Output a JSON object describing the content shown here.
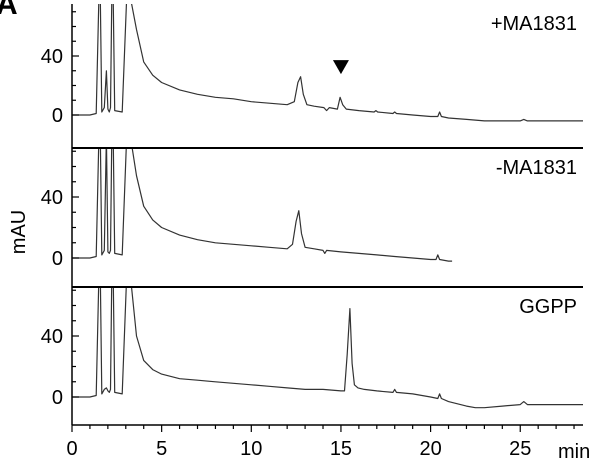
{
  "figure_letter": "A",
  "chart_data": {
    "type": "line",
    "layout": "stacked-panels",
    "xlabel": "min",
    "ylabel": "mAU",
    "xlim": [
      0,
      28.5
    ],
    "xticks": [
      0,
      5,
      10,
      15,
      20,
      25
    ],
    "yticks": [
      0,
      40
    ],
    "colors": {
      "trace": "#333333",
      "axis": "#000000",
      "marker": "#000000"
    },
    "panels": [
      {
        "label": "+MA1831",
        "ylim": [
          -8,
          80
        ],
        "series": {
          "x": [
            0,
            1.0,
            1.35,
            1.5,
            1.58,
            1.66,
            1.8,
            1.92,
            2.0,
            2.08,
            2.15,
            2.22,
            2.3,
            2.38,
            2.8,
            3.05,
            3.25,
            3.6,
            4.0,
            4.5,
            5,
            6,
            7,
            8,
            9,
            10,
            11,
            12,
            12.4,
            12.6,
            12.75,
            12.9,
            13.1,
            13.5,
            14.05,
            14.2,
            14.35,
            14.8,
            14.95,
            15.1,
            15.3,
            16,
            16.85,
            16.95,
            17.05,
            17.9,
            18.0,
            18.1,
            19,
            20,
            20.4,
            20.5,
            20.6,
            21,
            22,
            23,
            24,
            25,
            25.2,
            25.4,
            26,
            27,
            28.5
          ],
          "y": [
            0,
            0,
            1,
            80,
            80,
            2,
            5,
            30,
            4,
            2,
            5,
            80,
            80,
            3,
            2,
            80,
            80,
            58,
            36,
            27,
            22,
            17,
            14,
            12,
            11,
            9,
            8,
            7,
            9,
            22,
            26,
            14,
            7,
            6,
            5,
            3,
            5,
            4,
            12,
            7,
            4,
            3,
            2,
            3,
            2,
            1,
            2,
            1,
            0,
            -1,
            -1,
            2,
            -1,
            -2,
            -3,
            -4,
            -4,
            -4,
            -3,
            -4,
            -4,
            -4,
            -4
          ]
        },
        "annotations": [
          {
            "type": "down-triangle",
            "x": 15.0,
            "y": 25
          }
        ]
      },
      {
        "label": "-MA1831",
        "ylim": [
          -8,
          80
        ],
        "series": {
          "x": [
            0,
            1.0,
            1.35,
            1.5,
            1.58,
            1.66,
            1.8,
            1.92,
            2.0,
            2.08,
            2.15,
            2.22,
            2.3,
            2.38,
            2.8,
            3.05,
            3.25,
            3.6,
            4.0,
            4.5,
            5,
            6,
            7,
            8,
            9,
            10,
            11,
            12,
            12.3,
            12.5,
            12.65,
            12.8,
            13.0,
            13.5,
            14.0,
            14.1,
            14.2,
            15,
            16,
            17,
            18,
            19,
            20,
            20.3,
            20.4,
            20.5,
            21,
            21.2
          ],
          "y": [
            0,
            0,
            1,
            80,
            80,
            2,
            5,
            80,
            4,
            3,
            5,
            80,
            80,
            3,
            2,
            80,
            80,
            54,
            34,
            25,
            20,
            15,
            12,
            10,
            9,
            8,
            7,
            6,
            9,
            24,
            31,
            16,
            7,
            6,
            5,
            3,
            5,
            4,
            3,
            2,
            1,
            0,
            -1,
            -1,
            2,
            -1,
            -2,
            -2
          ]
        }
      },
      {
        "label": "GGPP",
        "ylim": [
          -8,
          80
        ],
        "series": {
          "x": [
            0,
            1.0,
            1.35,
            1.5,
            1.58,
            1.66,
            1.8,
            1.92,
            2.0,
            2.08,
            2.15,
            2.22,
            2.3,
            2.38,
            2.8,
            3.05,
            3.25,
            3.6,
            4.0,
            4.5,
            5,
            6,
            7,
            8,
            9,
            10,
            11,
            12,
            13,
            14,
            15,
            15.2,
            15.35,
            15.5,
            15.62,
            15.75,
            15.95,
            16.3,
            17,
            17.9,
            18.0,
            18.1,
            19,
            20,
            20.4,
            20.5,
            20.6,
            21,
            22,
            22.5,
            23,
            24,
            25,
            25.2,
            25.4,
            26,
            27,
            28.5
          ],
          "y": [
            0,
            0,
            1,
            80,
            80,
            2,
            5,
            6,
            4,
            3,
            5,
            80,
            80,
            3,
            2,
            80,
            80,
            40,
            24,
            18,
            15,
            12,
            11,
            10,
            9,
            8,
            7,
            6,
            5,
            5,
            4,
            4,
            28,
            58,
            22,
            8,
            6,
            5,
            4,
            3,
            5,
            3,
            2,
            0,
            -1,
            2,
            -1,
            -3,
            -6,
            -7,
            -7,
            -6,
            -5,
            -3,
            -5,
            -5,
            -5,
            -5
          ]
        }
      }
    ]
  }
}
